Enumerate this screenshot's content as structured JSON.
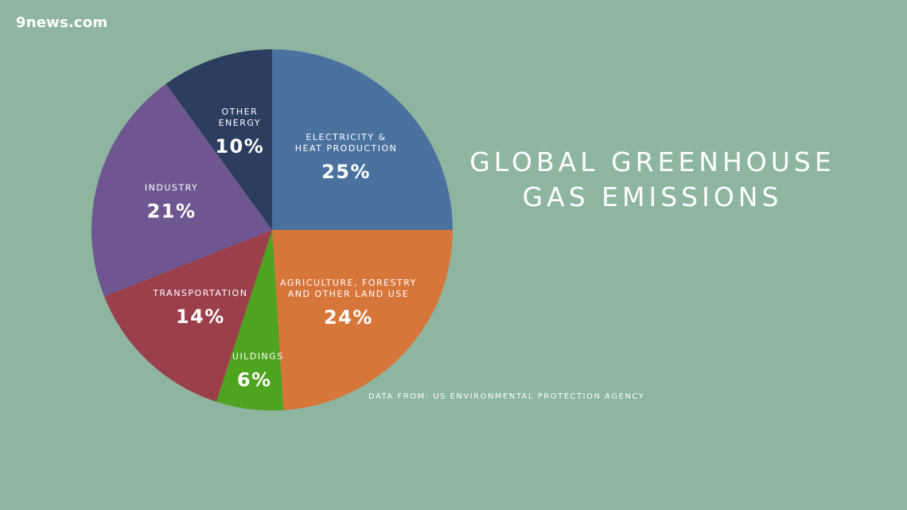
{
  "brand": {
    "logo_text": "9news.com"
  },
  "chart_data": {
    "type": "pie",
    "title_lines": [
      "GLOBAL GREENHOUSE",
      "GAS EMISSIONS"
    ],
    "source": "DATA FROM: US ENVIRONMENTAL PROTECTION AGENCY",
    "slices": [
      {
        "name_lines": [
          "ELECTRICITY &",
          "HEAT PRODUCTION"
        ],
        "value": 25,
        "label": "25%",
        "color": "#4a729f"
      },
      {
        "name_lines": [
          "AGRICULTURE, FORESTRY",
          "AND OTHER LAND USE"
        ],
        "value": 24,
        "label": "24%",
        "color": "#d7763b"
      },
      {
        "name_lines": [
          "BUILDINGS"
        ],
        "value": 6,
        "label": "6%",
        "color": "#4ea31f"
      },
      {
        "name_lines": [
          "TRANSPORTATION"
        ],
        "value": 14,
        "label": "14%",
        "color": "#9b3f4b"
      },
      {
        "name_lines": [
          "INDUSTRY"
        ],
        "value": 21,
        "label": "21%",
        "color": "#6f5690"
      },
      {
        "name_lines": [
          "OTHER",
          "ENERGY"
        ],
        "value": 10,
        "label": "10%",
        "color": "#2c3d60"
      }
    ]
  }
}
